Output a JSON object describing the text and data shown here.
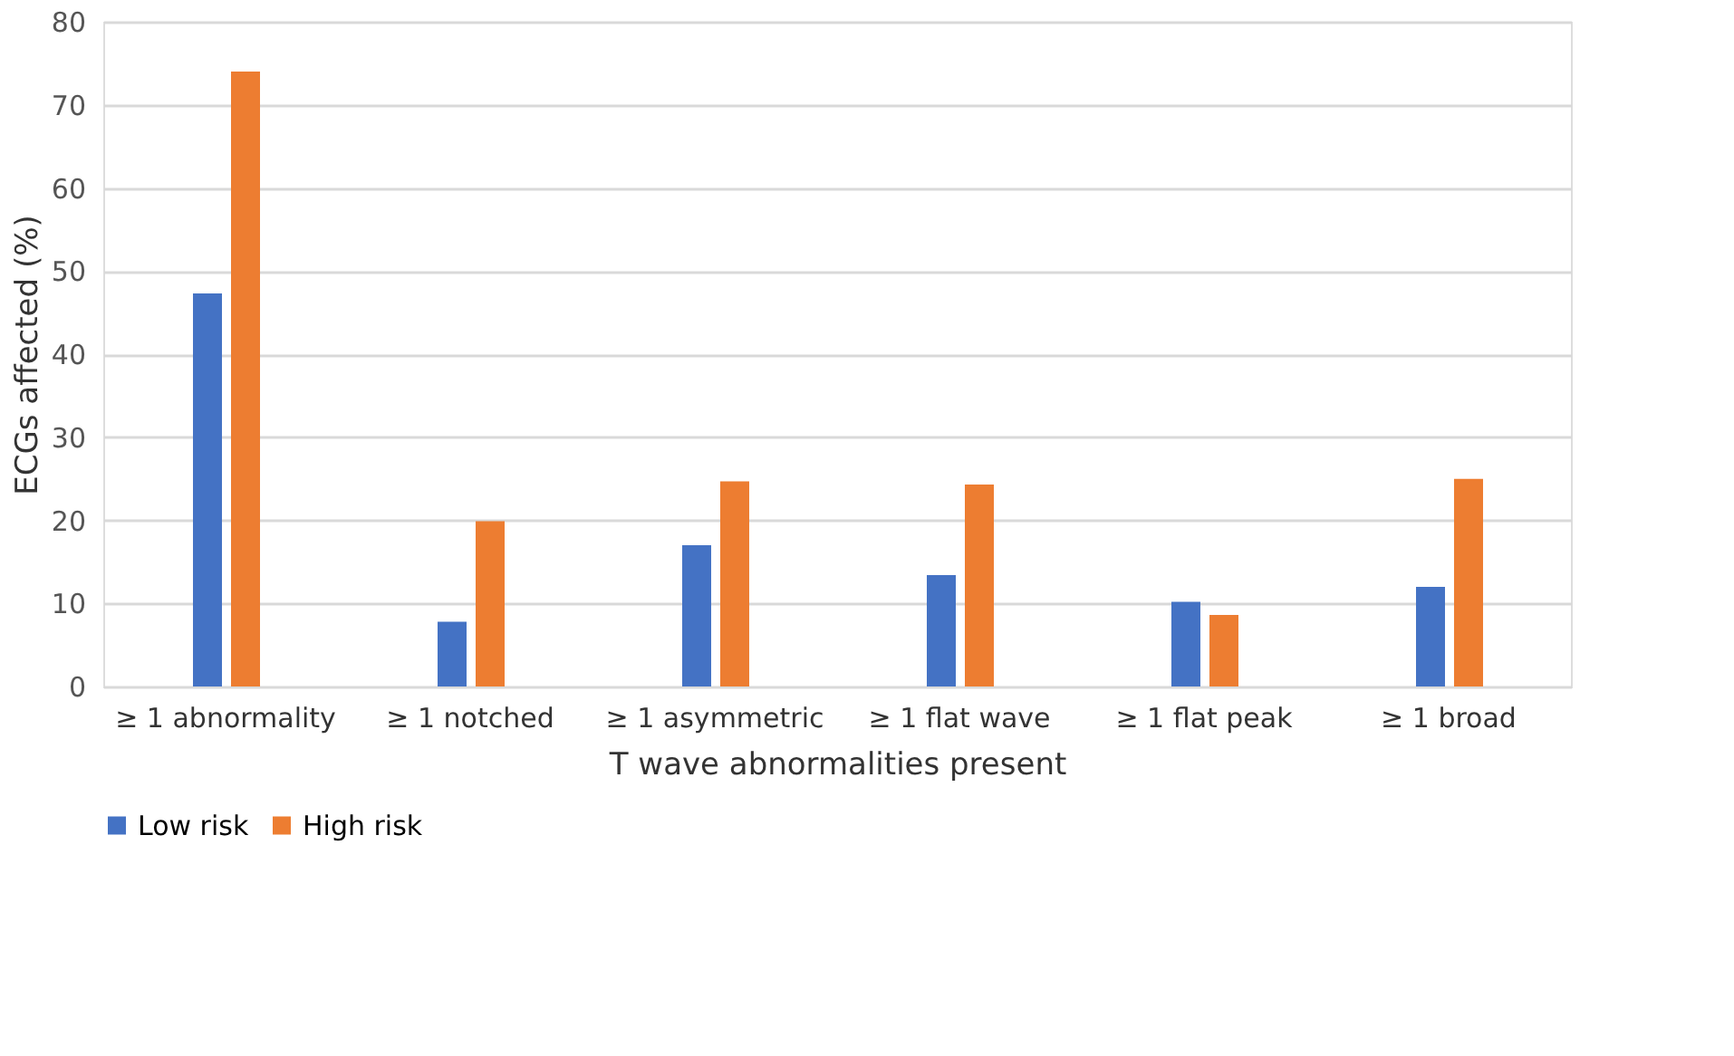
{
  "chart_data": {
    "type": "bar",
    "xlabel": "T wave abnormalities present",
    "ylabel": "ECGs affected (%)",
    "categories": [
      "≥ 1 abnormality",
      "≥ 1 notched",
      "≥ 1 asymmetric",
      "≥ 1 flat wave",
      "≥ 1 flat peak",
      "≥ 1 broad"
    ],
    "series": [
      {
        "name": "Low risk",
        "color": "#4472c4",
        "values": [
          47.3,
          7.8,
          17,
          13.4,
          10.2,
          12
        ]
      },
      {
        "name": "High risk",
        "color": "#ed7d31",
        "values": [
          74,
          19.9,
          24.7,
          24.3,
          8.6,
          25
        ]
      }
    ],
    "ylim": [
      0,
      80
    ],
    "yticks": [
      0,
      10,
      20,
      30,
      40,
      50,
      60,
      70,
      80
    ],
    "grid": "y",
    "legend": "bottom"
  }
}
